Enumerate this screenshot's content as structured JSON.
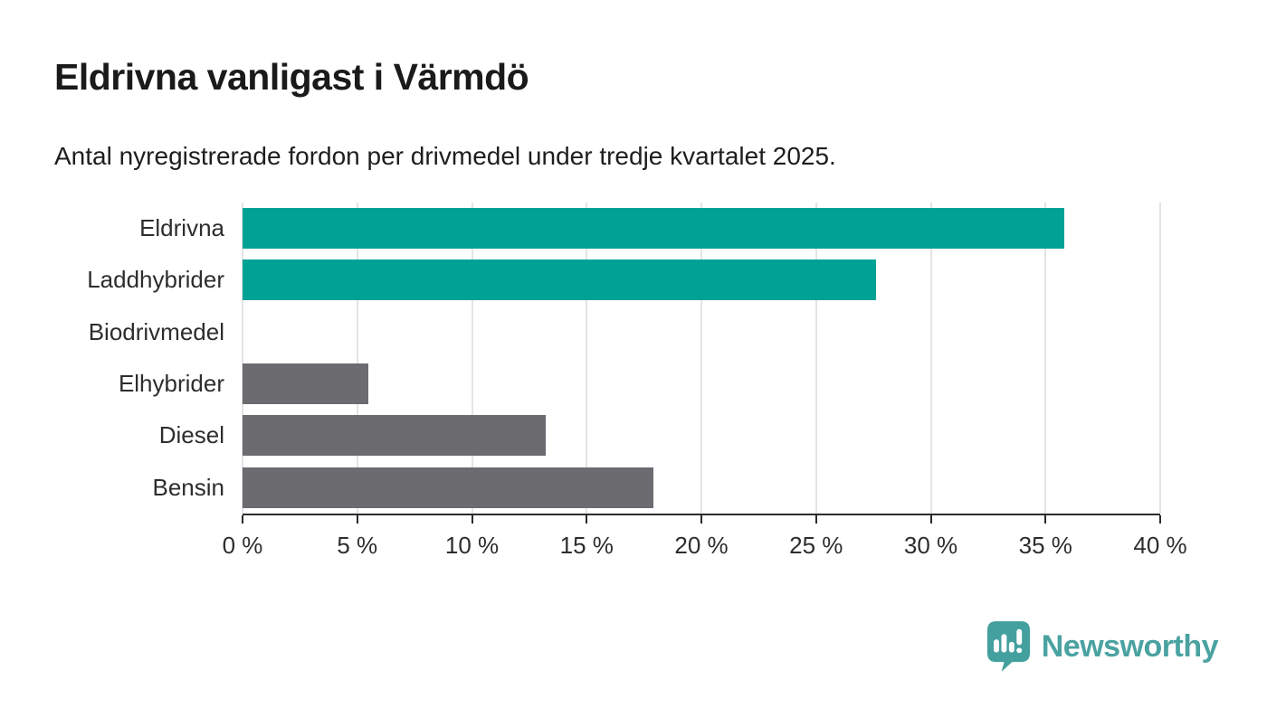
{
  "branding": {
    "name": "Newsworthy",
    "icon": "newsworthy-speech-bubble-bar-chart-icon",
    "wordmark_color": "#4aa2a1",
    "icon_color": "#43a09e"
  },
  "chart_data": {
    "type": "bar",
    "orientation": "horizontal",
    "title": "Eldrivna vanligast i Värmdö",
    "subtitle": "Antal nyregistrerade fordon per drivmedel under tredje kvartalet 2025.",
    "categories": [
      "Eldrivna",
      "Laddhybrider",
      "Biodrivmedel",
      "Elhybrider",
      "Diesel",
      "Bensin"
    ],
    "values": [
      35.8,
      27.6,
      0,
      5.5,
      13.2,
      17.9
    ],
    "unit": "%",
    "colors": [
      "#00a296",
      "#00a296",
      "#6b6b70",
      "#6b6b70",
      "#6b6b70",
      "#6b6b70"
    ],
    "highlight_color": "#00a296",
    "default_color": "#6b6b70",
    "xlabel": "",
    "ylabel": "",
    "xlim": [
      0,
      40
    ],
    "x_tick_values": [
      0,
      5,
      10,
      15,
      20,
      25,
      30,
      35,
      40
    ],
    "x_ticks": [
      "0 %",
      "5 %",
      "10 %",
      "15 %",
      "20 %",
      "25 %",
      "30 %",
      "35 %",
      "40 %"
    ],
    "grid": true,
    "legend": false
  }
}
